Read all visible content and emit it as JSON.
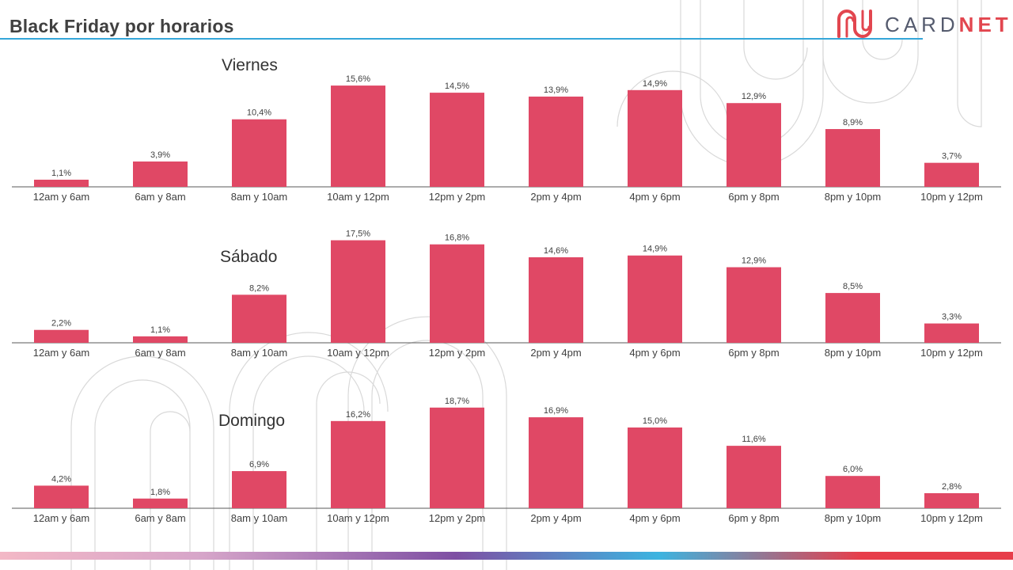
{
  "header": {
    "title": "Black Friday por horarios"
  },
  "logo": {
    "text_left": "CARD",
    "text_right": "NET",
    "icon": "cardnet-logo-icon"
  },
  "colors": {
    "bar": "#e04865",
    "title_line": "#34a6d9",
    "logo_red": "#e2464f",
    "logo_gray": "#555b6e"
  },
  "chart_data": [
    {
      "type": "bar",
      "title": "Viernes",
      "categories": [
        "12am y 6am",
        "6am y 8am",
        "8am y 10am",
        "10am y 12pm",
        "12pm y 2pm",
        "2pm y  4pm",
        "4pm y 6pm",
        "6pm y 8pm",
        "8pm y 10pm",
        "10pm y 12pm"
      ],
      "values": [
        1.1,
        3.9,
        10.4,
        15.6,
        14.5,
        13.9,
        14.9,
        12.9,
        8.9,
        3.7
      ],
      "labels": [
        "1,1%",
        "3,9%",
        "10,4%",
        "15,6%",
        "14,5%",
        "13,9%",
        "14,9%",
        "12,9%",
        "8,9%",
        "3,7%"
      ],
      "grid": false
    },
    {
      "type": "bar",
      "title": "Sábado",
      "categories": [
        "12am y 6am",
        "6am y 8am",
        "8am y 10am",
        "10am y 12pm",
        "12pm y 2pm",
        "2pm y  4pm",
        "4pm y 6pm",
        "6pm y 8pm",
        "8pm y 10pm",
        "10pm y 12pm"
      ],
      "values": [
        2.2,
        1.1,
        8.2,
        17.5,
        16.8,
        14.6,
        14.9,
        12.9,
        8.5,
        3.3
      ],
      "labels": [
        "2,2%",
        "1,1%",
        "8,2%",
        "17,5%",
        "16,8%",
        "14,6%",
        "14,9%",
        "12,9%",
        "8,5%",
        "3,3%"
      ],
      "grid": false
    },
    {
      "type": "bar",
      "title": "Domingo",
      "categories": [
        "12am y 6am",
        "6am y 8am",
        "8am y 10am",
        "10am y 12pm",
        "12pm y 2pm",
        "2pm y  4pm",
        "4pm y 6pm",
        "6pm y 8pm",
        "8pm y 10pm",
        "10pm y 12pm"
      ],
      "values": [
        4.2,
        1.8,
        6.9,
        16.2,
        18.7,
        16.9,
        15.0,
        11.6,
        6.0,
        2.8
      ],
      "labels": [
        "4,2%",
        "1,8%",
        "6,9%",
        "16,2%",
        "18,7%",
        "16,9%",
        "15,0%",
        "11,6%",
        "6,0%",
        "2,8%"
      ],
      "grid": false
    }
  ]
}
